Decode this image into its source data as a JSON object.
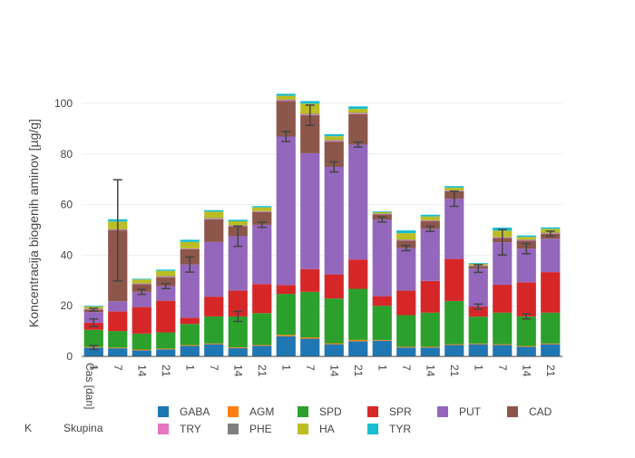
{
  "chart_data": {
    "type": "bar",
    "stacked": true,
    "ylabel": "Koncentracija biogenih aminov [µg/g]",
    "xlabel": "Čas [dan]",
    "group_label": "Skupina",
    "ylim": [
      0,
      105
    ],
    "yticks": [
      0,
      20,
      40,
      60,
      80,
      100
    ],
    "grid": true,
    "legend_position": "bottom",
    "categories": [
      "1",
      "7",
      "14",
      "21",
      "1",
      "7",
      "14",
      "21",
      "1",
      "7",
      "14",
      "21",
      "1",
      "7",
      "14",
      "21",
      "1",
      "7",
      "14",
      "21"
    ],
    "groups": [
      {
        "label": "K",
        "count": 4
      },
      {
        "label": "",
        "count": 4
      },
      {
        "label": "",
        "count": 4
      },
      {
        "label": "",
        "count": 4
      },
      {
        "label": "",
        "count": 4
      }
    ],
    "series": [
      {
        "name": "GABA",
        "color": "#1f77b4",
        "values": [
          3.5,
          3.2,
          2.4,
          2.8,
          4.2,
          4.8,
          3.3,
          4.2,
          8.0,
          7.0,
          4.8,
          6.0,
          6.2,
          3.5,
          3.5,
          4.5,
          4.8,
          4.5,
          3.8,
          4.8
        ]
      },
      {
        "name": "AGM",
        "color": "#ff7f0e",
        "values": [
          0.3,
          0.3,
          0.3,
          0.3,
          0.3,
          0.3,
          0.3,
          0.3,
          0.5,
          0.5,
          0.4,
          0.5,
          0.3,
          0.3,
          0.3,
          0.3,
          0.3,
          0.3,
          0.3,
          0.3
        ]
      },
      {
        "name": "SPD",
        "color": "#2ca02c",
        "values": [
          6.7,
          6.5,
          6.3,
          6.4,
          8.3,
          10.7,
          12.2,
          12.6,
          16.2,
          18.0,
          17.7,
          20.2,
          13.5,
          12.5,
          13.5,
          17.1,
          10.6,
          12.5,
          11.7,
          12.2
        ]
      },
      {
        "name": "SPR",
        "color": "#d62728",
        "values": [
          2.8,
          7.8,
          10.5,
          12.5,
          2.5,
          7.8,
          10.2,
          11.5,
          3.5,
          9.0,
          9.5,
          11.6,
          3.8,
          9.7,
          12.5,
          16.6,
          4.0,
          11.0,
          13.5,
          16.0
        ]
      },
      {
        "name": "PUT",
        "color": "#9467bd",
        "values": [
          4.2,
          4.0,
          6.0,
          5.8,
          21.0,
          21.6,
          21.5,
          23.4,
          58.7,
          45.8,
          42.5,
          45.4,
          30.3,
          16.8,
          20.6,
          23.8,
          15.0,
          16.8,
          13.3,
          13.2
        ]
      },
      {
        "name": "CAD",
        "color": "#8c564b",
        "values": [
          1.0,
          28.0,
          3.0,
          3.5,
          6.0,
          9.0,
          4.0,
          5.0,
          14.0,
          15.0,
          10.0,
          12.0,
          2.0,
          3.0,
          3.0,
          3.0,
          1.0,
          1.7,
          3.2,
          2.0
        ]
      },
      {
        "name": "TRY",
        "color": "#e377c2",
        "values": [
          0.2,
          0.2,
          0.2,
          0.2,
          0.2,
          0.2,
          0.2,
          0.2,
          0.3,
          0.3,
          0.3,
          0.3,
          0.2,
          0.2,
          0.2,
          0.2,
          0.2,
          0.2,
          0.2,
          0.2
        ]
      },
      {
        "name": "PHE",
        "color": "#7f7f7f",
        "values": [
          0.2,
          0.3,
          0.2,
          0.3,
          0.2,
          0.3,
          0.2,
          0.2,
          0.3,
          0.3,
          0.3,
          0.3,
          0.2,
          0.2,
          0.2,
          0.2,
          0.2,
          0.2,
          0.2,
          0.2
        ]
      },
      {
        "name": "HA",
        "color": "#bcbd22",
        "values": [
          0.8,
          3.0,
          1.5,
          2.0,
          2.5,
          2.5,
          1.5,
          1.5,
          1.5,
          4.0,
          1.5,
          1.5,
          0.5,
          2.5,
          1.5,
          1.0,
          0.5,
          2.5,
          1.0,
          1.5
        ]
      },
      {
        "name": "TYR",
        "color": "#17becf",
        "values": [
          0.3,
          0.9,
          0.3,
          0.5,
          0.9,
          0.6,
          0.6,
          0.5,
          0.8,
          1.0,
          0.8,
          1.0,
          0.3,
          1.1,
          0.7,
          0.6,
          0.3,
          1.2,
          0.6,
          0.6
        ]
      }
    ],
    "error_bars": [
      {
        "series": "GABA",
        "category_index": 0,
        "value": 0.8
      },
      {
        "series": "SPR",
        "category_index": 0,
        "value": 1.5
      },
      {
        "series": "CAD",
        "category_index": 0,
        "value": 0.5
      },
      {
        "series": "CAD",
        "category_index": 1,
        "value": 20.0
      },
      {
        "series": "PUT",
        "category_index": 2,
        "value": 1.0
      },
      {
        "series": "PUT",
        "category_index": 3,
        "value": 1.0
      },
      {
        "series": "PUT",
        "category_index": 4,
        "value": 3.0
      },
      {
        "series": "PUT",
        "category_index": 6,
        "value": 4.0
      },
      {
        "series": "SPD",
        "category_index": 6,
        "value": 2.0
      },
      {
        "series": "PUT",
        "category_index": 7,
        "value": 1.0
      },
      {
        "series": "PUT",
        "category_index": 8,
        "value": 2.0
      },
      {
        "series": "CAD",
        "category_index": 9,
        "value": 4.0
      },
      {
        "series": "PUT",
        "category_index": 10,
        "value": 2.0
      },
      {
        "series": "PUT",
        "category_index": 11,
        "value": 1.0
      },
      {
        "series": "PUT",
        "category_index": 12,
        "value": 1.0
      },
      {
        "series": "PUT",
        "category_index": 13,
        "value": 1.0
      },
      {
        "series": "PUT",
        "category_index": 14,
        "value": 1.0
      },
      {
        "series": "PUT",
        "category_index": 15,
        "value": 3.0
      },
      {
        "series": "SPR",
        "category_index": 16,
        "value": 1.0
      },
      {
        "series": "PUT",
        "category_index": 16,
        "value": 1.5
      },
      {
        "series": "PUT",
        "category_index": 17,
        "value": 5.0
      },
      {
        "series": "SPD",
        "category_index": 18,
        "value": 1.0
      },
      {
        "series": "PUT",
        "category_index": 18,
        "value": 2.0
      },
      {
        "series": "CAD",
        "category_index": 19,
        "value": 1.0
      }
    ]
  }
}
